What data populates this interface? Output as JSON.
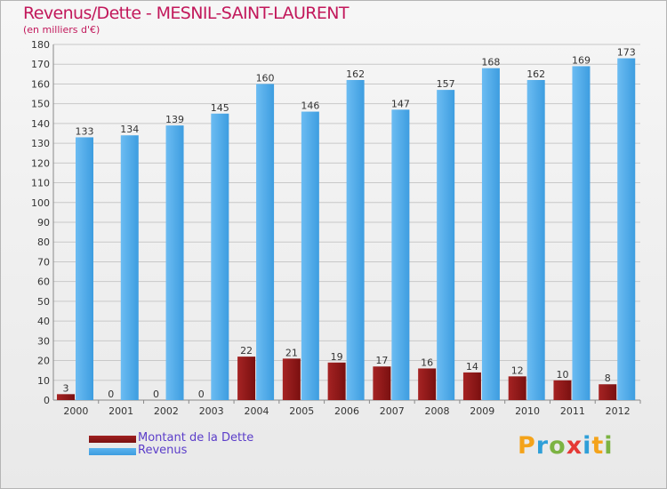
{
  "header": {
    "title": "Revenus/Dette - MESNIL-SAINT-LAURENT",
    "subtitle": "(en milliers d'€)"
  },
  "brand": {
    "text": "Proxiti"
  },
  "colors": {
    "debt": "#7a1010",
    "revenue": "#3d9de0",
    "grid": "#c8c8c8",
    "axis_text": "#333333"
  },
  "chart_data": {
    "type": "bar",
    "title": "Revenus/Dette - MESNIL-SAINT-LAURENT",
    "ylabel": "(en milliers d'€)",
    "xlabel": "",
    "ylim": [
      0,
      180
    ],
    "yticks": [
      0,
      10,
      20,
      30,
      40,
      50,
      60,
      70,
      80,
      90,
      100,
      110,
      120,
      130,
      140,
      150,
      160,
      170,
      180
    ],
    "categories": [
      "2000",
      "2001",
      "2002",
      "2003",
      "2004",
      "2005",
      "2006",
      "2007",
      "2008",
      "2009",
      "2010",
      "2011",
      "2012"
    ],
    "series": [
      {
        "name": "Montant de la Dette",
        "values": [
          3,
          0,
          0,
          0,
          22,
          21,
          19,
          17,
          16,
          14,
          12,
          10,
          8
        ]
      },
      {
        "name": "Revenus",
        "values": [
          133,
          134,
          139,
          145,
          160,
          146,
          162,
          147,
          157,
          168,
          162,
          169,
          173
        ]
      }
    ],
    "legend": "bottom-left",
    "grid": true
  }
}
